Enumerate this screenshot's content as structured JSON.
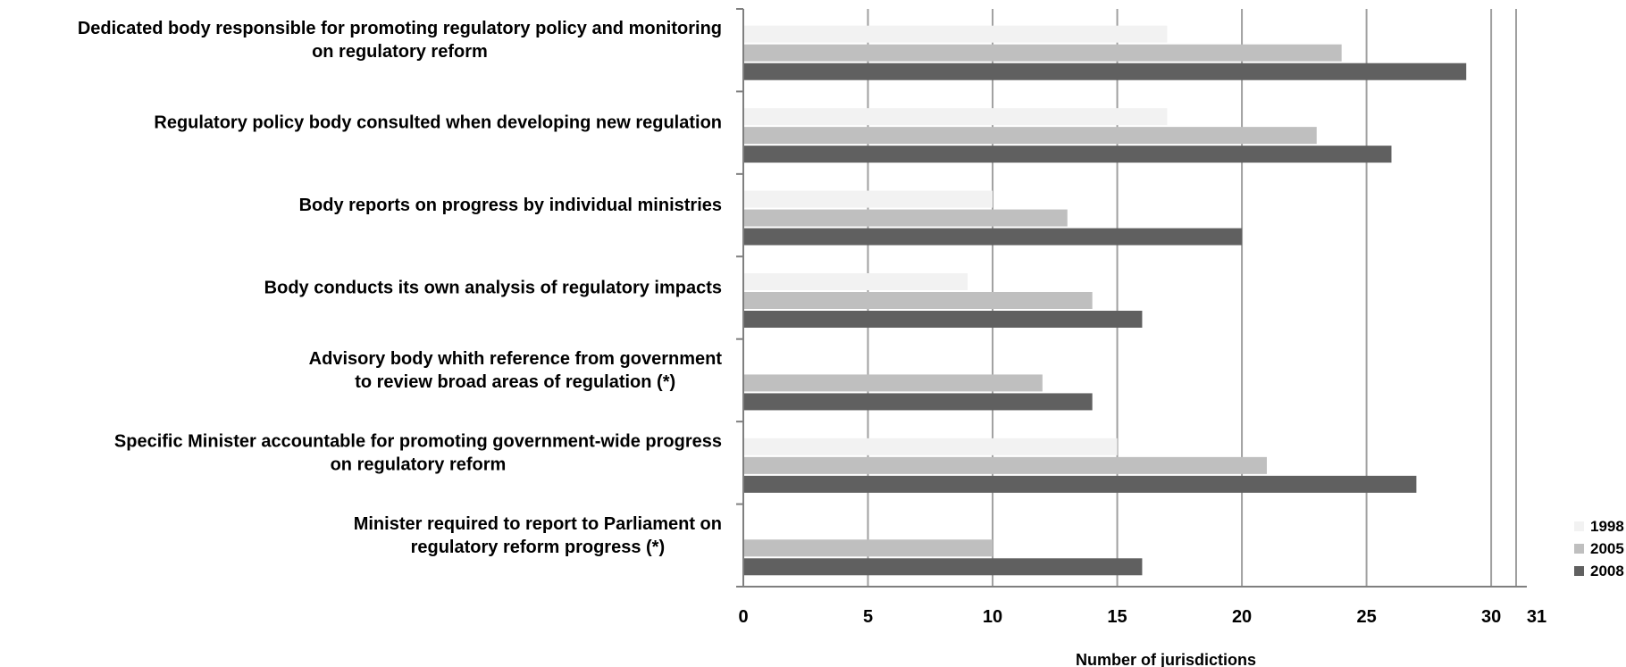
{
  "chart_data": {
    "type": "bar",
    "orientation": "horizontal",
    "categories": [
      [
        "Dedicated body responsible for promoting regulatory policy and monitoring",
        "on regulatory reform"
      ],
      [
        "Regulatory policy body consulted when developing new regulation"
      ],
      [
        "Body reports on progress by individual ministries"
      ],
      [
        "Body conducts its own analysis of regulatory impacts"
      ],
      [
        "Advisory body whith reference from government",
        "to review broad areas of regulation (*)"
      ],
      [
        "Specific Minister accountable for promoting government-wide progress",
        "on regulatory reform"
      ],
      [
        "Minister required to report to Parliament on",
        "regulatory reform progress (*)"
      ]
    ],
    "series": [
      {
        "name": "1998",
        "color": "#f2f2f2",
        "values": [
          17,
          17,
          10,
          9,
          null,
          15,
          null
        ]
      },
      {
        "name": "2005",
        "color": "#bfbfbf",
        "values": [
          24,
          23,
          13,
          14,
          12,
          21,
          10
        ]
      },
      {
        "name": "2008",
        "color": "#606060",
        "values": [
          29,
          26,
          20,
          16,
          14,
          27,
          16
        ]
      }
    ],
    "xticks": [
      "0",
      "5",
      "10",
      "15",
      "20",
      "25",
      "30"
    ],
    "xtick_values": [
      0,
      5,
      10,
      15,
      20,
      25,
      30
    ],
    "xmax_label": "31",
    "xlim": [
      0,
      31
    ],
    "xlabel": "Number of jurisdictions",
    "grid": true,
    "legend_position": "bottom-right"
  }
}
